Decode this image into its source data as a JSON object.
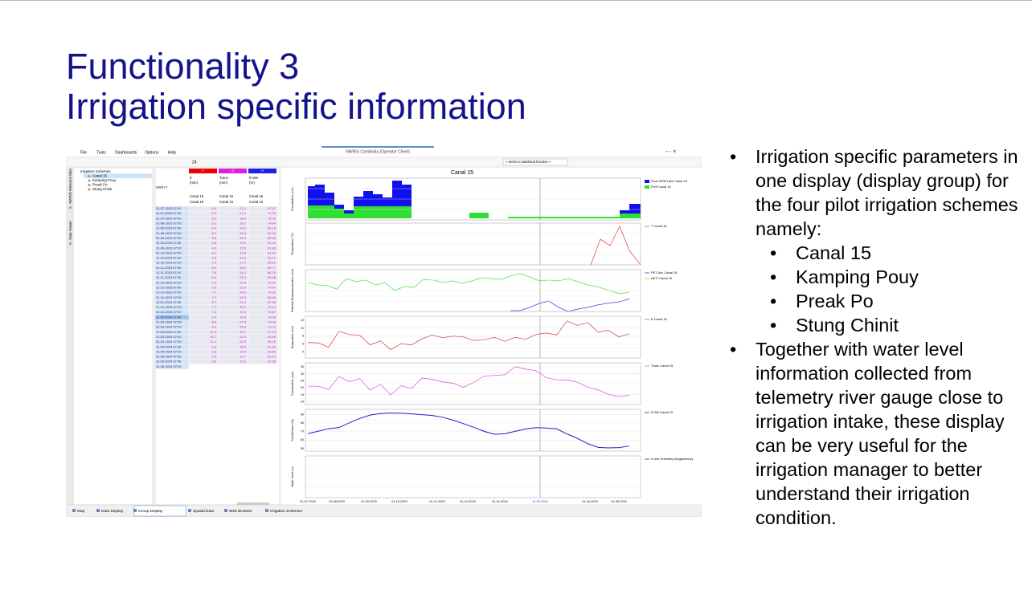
{
  "title_lines": [
    "Functionality 3",
    "Irrigation specific information"
  ],
  "bullets": {
    "intro": "Irrigation specific parameters in one display (display group) for the four pilot irrigation schemes namely:",
    "schemes": [
      "Canal 15",
      "Kamping Pouy",
      "Preak Po",
      "Stung Chinit"
    ],
    "closing": "Together with water level information collected from telemetry river gauge close to irrigation intake, these display can be very useful for the irrigation manager to better understand their irrigation condition."
  },
  "app": {
    "window_title": "NWRIS Cambodia (Operator Client)",
    "menu": [
      "File",
      "Tools",
      "Dashboards",
      "Options",
      "Help"
    ],
    "toolbar_number": "24",
    "stat_select": "« Select a statistical function »",
    "side_tabs": [
      "5 - NWRIS Relevant Sites",
      "6 - Data Viewer"
    ],
    "tree": {
      "root": "Irrigation Schemes",
      "items": [
        "Canal 15",
        "Kamping Pouy",
        "Preak Po",
        "Stung Chinit"
      ]
    },
    "table": {
      "col_letters": [
        "F",
        "G",
        "H"
      ],
      "col_names": [
        "E",
        "Trans",
        "R.SM"
      ],
      "col_units": [
        "(mm)",
        "(mm)",
        "(%)"
      ],
      "timezone": "GMT+7",
      "location": "Canal 15",
      "rows": [
        [
          "01-07-2023 07:00",
          "6.4",
          "21.2",
          "67.47"
        ],
        [
          "11-07-2023 07:00",
          "6.3",
          "21.2",
          "70.29"
        ],
        [
          "21-07-2023 07:00",
          "5.2",
          "18.8",
          "73.32"
        ],
        [
          "01-08-2023 07:00",
          "9.2",
          "28.2",
          "74.64"
        ],
        [
          "11-08-2023 07:00",
          "8.4",
          "24.3",
          "80.18"
        ],
        [
          "21-08-2023 07:00",
          "8.2",
          "26.8",
          "85.34"
        ],
        [
          "01-09-2023 07:00",
          "5.8",
          "18.3",
          "89.25"
        ],
        [
          "11-09-2023 07:00",
          "6.8",
          "22.6",
          "91.10"
        ],
        [
          "21-09-2023 07:00",
          "4.6",
          "15.0",
          "91.80"
        ],
        [
          "01-10-2023 07:00",
          "6.1",
          "21.5",
          "91.47"
        ],
        [
          "11-10-2023 07:00",
          "5.8",
          "19.5",
          "90.71"
        ],
        [
          "21-10-2023 07:00",
          "7.3",
          "27.0",
          "89.81"
        ],
        [
          "01-11-2023 07:00",
          "8.3",
          "26.2",
          "88.77"
        ],
        [
          "11-11-2023 07:00",
          "7.6",
          "24.2",
          "86.76"
        ],
        [
          "21-11-2023 07:00",
          "8.0",
          "23.4",
          "83.38"
        ],
        [
          "01-12-2023 07:00",
          "7.8",
          "20.4",
          "79.22"
        ],
        [
          "11-12-2023 07:00",
          "6.9",
          "23.9",
          "74.97"
        ],
        [
          "21-12-2023 07:00",
          "7.1",
          "28.5",
          "70.22"
        ],
        [
          "01-01-2024 07:00",
          "7.7",
          "28.9",
          "66.80"
        ],
        [
          "11-01-2024 07:00",
          "6.7",
          "29.4",
          "67.38"
        ],
        [
          "21-01-2024 07:00",
          "7.7",
          "35.2",
          "70.17"
        ],
        [
          "01-02-2024 07:00",
          "7.2",
          "33.5",
          "72.87"
        ],
        [
          "11-02-2024 07:00",
          "8.4",
          "32.4",
          "74.58"
        ],
        [
          "21-02-2024 07:00",
          "8.8",
          "27.3",
          "74.09"
        ],
        [
          "01-03-2024 07:00",
          "8.3",
          "25.8",
          "73.11"
        ],
        [
          "11-03-2024 07:00",
          "11.8",
          "25.7",
          "67.13"
        ],
        [
          "21-03-2024 07:00",
          "10.7",
          "24.0",
          "61.96"
        ],
        [
          "01-04-2024 07:00",
          "11.4",
          "20.5",
          "55.70"
        ],
        [
          "11-04-2024 07:00",
          "9.0",
          "18.5",
          "51.34"
        ],
        [
          "21-04-2024 07:00",
          "9.5",
          "15.4",
          "50.82"
        ],
        [
          "01-05-2024 07:00",
          "7.8",
          "13.7",
          "51.14"
        ],
        [
          "11-05-2024 07:00",
          "8.6",
          "14.6",
          "52.95"
        ],
        [
          "21-05-2024 07:00"
        ]
      ]
    },
    "chart_title": "Canal 15",
    "panels": [
      {
        "ylabel": "Precipitation (mm)",
        "legend": [
          "P.sat GPM Late Canal 15",
          "P.eff Canal 15"
        ]
      },
      {
        "ylabel": "Temperature (°C)",
        "legend": [
          "T Canal 15"
        ]
      },
      {
        "ylabel": "Potential Evapotranspiration (mm)",
        "legend": [
          "PET Acc Canal 15",
          "AETI Canal 15"
        ]
      },
      {
        "ylabel": "Evaporation (mm)",
        "legend": [
          "E Canal 15"
        ],
        "color": "#e05050",
        "ylim": [
          2.5,
          13
        ],
        "yticks": [
          4,
          6,
          8,
          10,
          12
        ]
      },
      {
        "ylabel": "Transpiration (mm)",
        "legend": [
          "Trans Canal 15"
        ],
        "color": "#e060e0",
        "ylim": [
          8,
          38
        ],
        "yticks": [
          10,
          15,
          20,
          25,
          30,
          35
        ]
      },
      {
        "ylabel": "Soil Moisture (%)",
        "legend": [
          "R.SM Canal 15"
        ],
        "color": "#2020c0",
        "ylim": [
          47,
          96
        ],
        "yticks": [
          50,
          60,
          70,
          80,
          90
        ]
      },
      {
        "ylabel": "Water Level (m)",
        "legend": [
          "H.obs Telemetry Angkorborey"
        ]
      }
    ],
    "x_labels": [
      "01-07-2023",
      "01-08-2023",
      "01-09-2023",
      "01-10-2023",
      "01-11-2023",
      "01-12-2023",
      "01-01-2024",
      "11-02-2024",
      "01-04-2024",
      "01-05-2024"
    ],
    "bottom_tabs": [
      "Map",
      "Data Display",
      "Group Display",
      "Spatial Data",
      "Web Browser",
      "Irrigation Schemes"
    ]
  }
}
